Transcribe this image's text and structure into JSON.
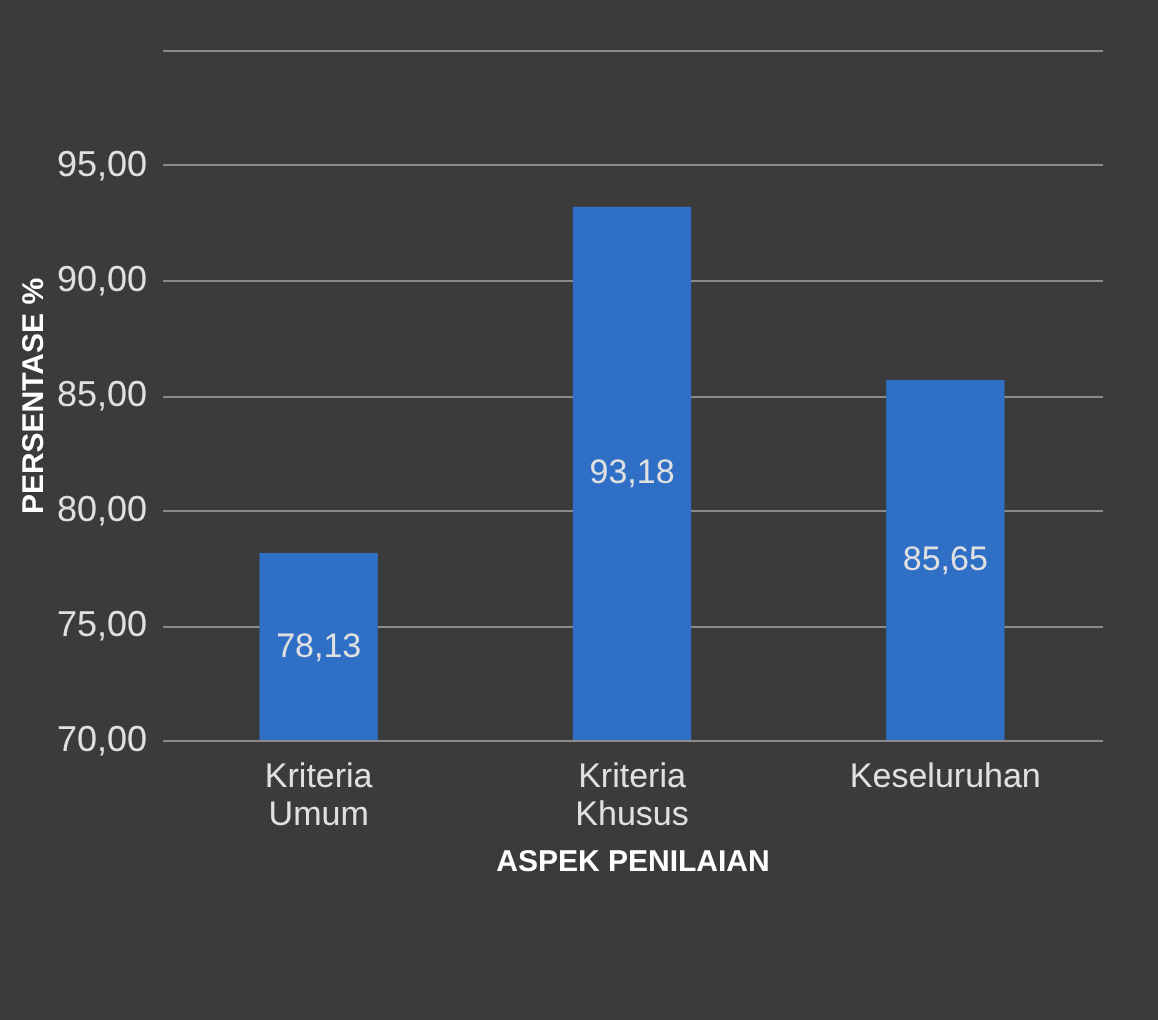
{
  "chart_data": {
    "type": "bar",
    "xlabel": "ASPEK PENILAIAN",
    "ylabel": "PERSENTASE %",
    "categories": [
      "Kriteria Umum",
      "Kriteria Khusus",
      "Keseluruhan"
    ],
    "values": [
      78.13,
      93.18,
      85.65
    ],
    "color": "#2f6fc6",
    "value_labels": [
      "78,13",
      "93,18",
      "85,65"
    ],
    "ylim": [
      70,
      100
    ],
    "yticks": [
      {
        "value": 70,
        "label": "70,00"
      },
      {
        "value": 75,
        "label": "75,00"
      },
      {
        "value": 80,
        "label": "80,00"
      },
      {
        "value": 85,
        "label": "85,00"
      },
      {
        "value": 90,
        "label": "90,00"
      },
      {
        "value": 95,
        "label": "95,00"
      },
      {
        "value": 100,
        "label": null
      }
    ],
    "grid": true
  }
}
